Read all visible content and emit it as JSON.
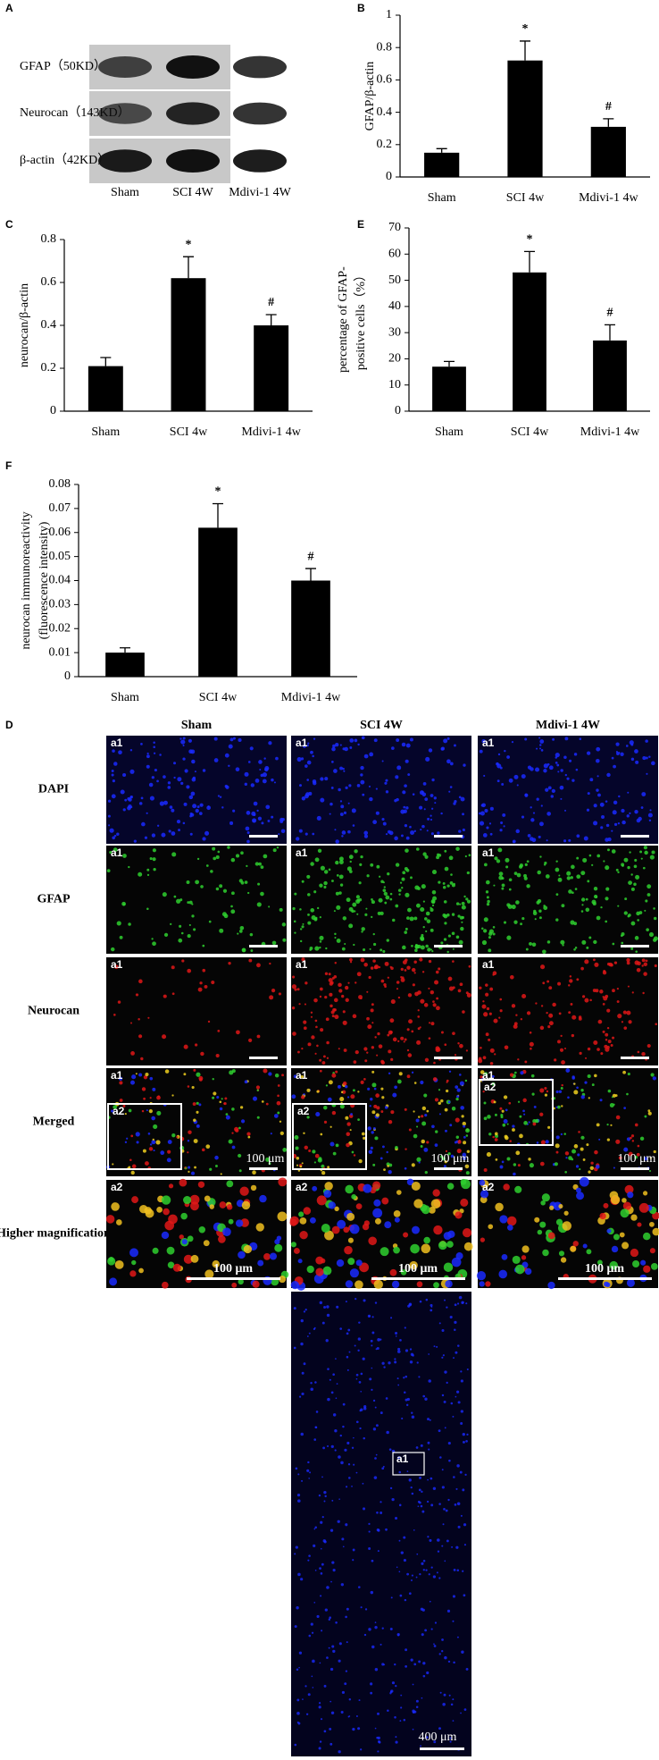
{
  "blot": {
    "label": "A",
    "rows": [
      "GFAP（50KD）",
      "Neurocan（143KD）",
      "β-actin（42KD）"
    ],
    "lanes": [
      "Sham",
      "SCI 4W",
      "Mdivi-1 4W"
    ]
  },
  "chart_data": [
    {
      "type": "bar",
      "label": "B",
      "y_label": [
        "GFAP/β-actin"
      ],
      "categories": [
        "Sham",
        "SCI 4w",
        "Mdivi-1 4w"
      ],
      "values": [
        0.15,
        0.72,
        0.31
      ],
      "errors": [
        0.025,
        0.12,
        0.05
      ],
      "annotations": [
        null,
        "*",
        "#"
      ],
      "color": "#000000",
      "ylim": [
        0,
        1
      ],
      "yticks": [
        0,
        0.2,
        0.4,
        0.6,
        0.8,
        1
      ]
    },
    {
      "type": "bar",
      "label": "C",
      "y_label": [
        "neurocan/β-actin"
      ],
      "categories": [
        "Sham",
        "SCI 4w",
        "Mdivi-1 4w"
      ],
      "values": [
        0.21,
        0.62,
        0.4
      ],
      "errors": [
        0.04,
        0.1,
        0.05
      ],
      "annotations": [
        null,
        "*",
        "#"
      ],
      "color": "#000000",
      "ylim": [
        0,
        0.8
      ],
      "yticks": [
        0,
        0.2,
        0.4,
        0.6,
        0.8
      ]
    },
    {
      "type": "bar",
      "label": "E",
      "y_label": [
        "percentage of GFAP-",
        "positive cells（%）"
      ],
      "categories": [
        "Sham",
        "SCI 4w",
        "Mdivi-1 4w"
      ],
      "values": [
        17,
        53,
        27
      ],
      "errors": [
        2,
        8,
        6
      ],
      "annotations": [
        null,
        "*",
        "#"
      ],
      "color": "#000000",
      "ylim": [
        0,
        70
      ],
      "yticks": [
        0,
        10,
        20,
        30,
        40,
        50,
        60,
        70
      ]
    },
    {
      "type": "bar",
      "label": "F",
      "y_label": [
        "neurocan immunoreactivity",
        "(fluorescence intensity)"
      ],
      "categories": [
        "Sham",
        "SCI 4w",
        "Mdivi-1 4w"
      ],
      "values": [
        0.01,
        0.062,
        0.04
      ],
      "errors": [
        0.002,
        0.01,
        0.005
      ],
      "annotations": [
        null,
        "*",
        "#"
      ],
      "color": "#000000",
      "ylim": [
        0,
        0.08
      ],
      "yticks": [
        0,
        0.01,
        0.02,
        0.03,
        0.04,
        0.05,
        0.06,
        0.07,
        0.08
      ]
    }
  ],
  "micrograph": {
    "label": "D",
    "columns": [
      "Sham",
      "SCI 4W",
      "Mdivi-1 4W"
    ],
    "rows": [
      "DAPI",
      "GFAP",
      "Neurocan",
      "Merged",
      "Higher magnification"
    ],
    "tile_tags": [
      "a1",
      "a2"
    ],
    "scale_labels": [
      "100 μm",
      "400 μm"
    ]
  }
}
